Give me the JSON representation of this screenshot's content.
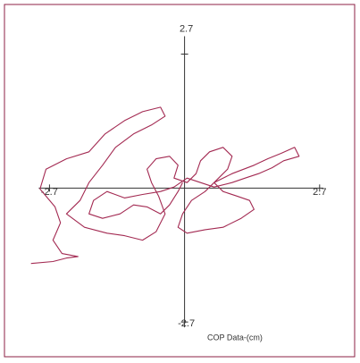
{
  "chart_data": {
    "type": "line",
    "x_label": "COP Data-(cm)",
    "xlim": [
      -3.6,
      3.4
    ],
    "ylim": [
      -3.4,
      3.7
    ],
    "xticks": [
      -2.7,
      2.7
    ],
    "yticks": [
      -2.7,
      2.7
    ],
    "series": [
      {
        "color": "#a32a52",
        "x": [
          -3.07,
          -2.63,
          -2.36,
          -2.13,
          -2.45,
          -2.63,
          -2.48,
          -2.59,
          -2.89,
          -2.77,
          -2.36,
          -1.91,
          -1.59,
          -1.2,
          -0.84,
          -0.48,
          -0.39,
          -0.66,
          -1.02,
          -1.38,
          -1.64,
          -1.91,
          -2.09,
          -2.36,
          -2.0,
          -1.55,
          -1.2,
          -0.84,
          -0.57,
          -0.39,
          -0.52,
          -0.66,
          -0.75,
          -0.57,
          -0.3,
          -0.13,
          -0.21,
          0.05,
          0.23,
          0.32,
          0.5,
          0.77,
          0.95,
          0.86,
          0.68,
          0.41,
          0.14,
          -0.04,
          -0.13,
          0.05,
          0.41,
          0.77,
          1.13,
          1.39,
          1.3,
          1.04,
          0.77,
          0.59,
          0.95,
          1.39,
          1.66,
          1.93,
          2.2,
          2.29,
          1.98,
          1.75,
          1.48,
          1.21,
          0.95,
          0.59,
          0.32,
          0.05,
          -0.21,
          -0.48,
          -0.84,
          -1.2,
          -1.55,
          -1.82,
          -1.91,
          -1.64,
          -1.29,
          -1.02,
          -0.75,
          -0.48,
          -0.3,
          -0.13,
          -0.04
        ],
        "values": [
          -1.52,
          -1.48,
          -1.41,
          -1.38,
          -1.32,
          -1.05,
          -0.7,
          -0.38,
          -0.02,
          0.38,
          0.59,
          0.73,
          1.09,
          1.36,
          1.54,
          1.63,
          1.45,
          1.27,
          1.09,
          0.82,
          0.46,
          0.11,
          -0.25,
          -0.52,
          -0.79,
          -0.91,
          -0.96,
          -1.05,
          -0.88,
          -0.52,
          -0.16,
          0.11,
          0.38,
          0.59,
          0.64,
          0.46,
          0.2,
          0.11,
          0.29,
          0.55,
          0.73,
          0.82,
          0.64,
          0.38,
          0.2,
          -0.07,
          -0.25,
          -0.52,
          -0.79,
          -0.91,
          -0.84,
          -0.79,
          -0.61,
          -0.43,
          -0.25,
          -0.16,
          -0.07,
          0.11,
          0.29,
          0.46,
          0.59,
          0.7,
          0.82,
          0.64,
          0.55,
          0.41,
          0.29,
          0.2,
          0.11,
          0.02,
          0.11,
          0.2,
          0.02,
          -0.07,
          -0.13,
          -0.2,
          -0.07,
          -0.25,
          -0.52,
          -0.61,
          -0.52,
          -0.34,
          -0.38,
          -0.52,
          -0.34,
          -0.07,
          0.11
        ]
      }
    ]
  }
}
